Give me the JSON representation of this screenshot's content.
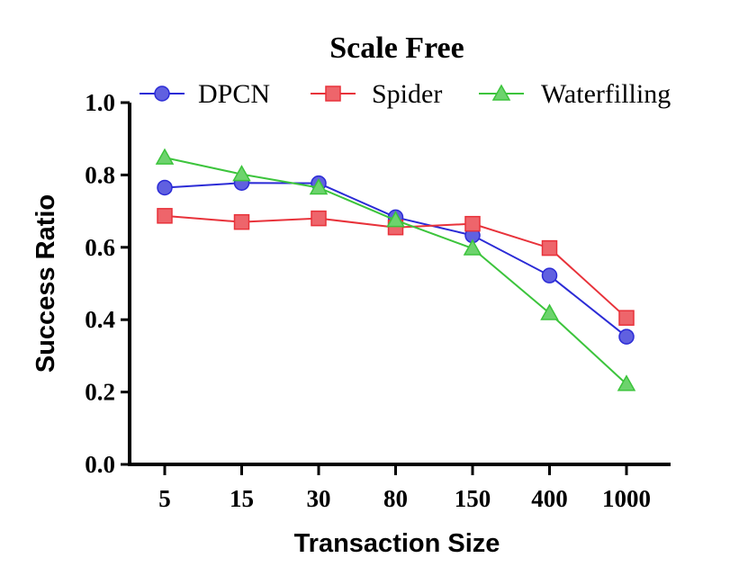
{
  "chart_data": {
    "type": "line",
    "title": "Scale Free",
    "xlabel": "Transaction Size",
    "ylabel": "Success Ratio",
    "categories": [
      "5",
      "15",
      "30",
      "80",
      "150",
      "400",
      "1000"
    ],
    "ylim": [
      0.0,
      1.0
    ],
    "yticks": [
      "0.0",
      "0.2",
      "0.4",
      "0.6",
      "0.8",
      "1.0"
    ],
    "grid": false,
    "legend_position": "top",
    "series": [
      {
        "name": "DPCN",
        "color": "#2b2bd6",
        "marker": "circle",
        "values": [
          0.765,
          0.778,
          0.777,
          0.683,
          0.633,
          0.522,
          0.353
        ]
      },
      {
        "name": "Spider",
        "color": "#e8323a",
        "marker": "square",
        "values": [
          0.687,
          0.67,
          0.68,
          0.655,
          0.665,
          0.598,
          0.405
        ]
      },
      {
        "name": "Waterfilling",
        "color": "#3cc43c",
        "marker": "triangle",
        "values": [
          0.848,
          0.802,
          0.765,
          0.675,
          0.597,
          0.418,
          0.222
        ]
      }
    ]
  }
}
